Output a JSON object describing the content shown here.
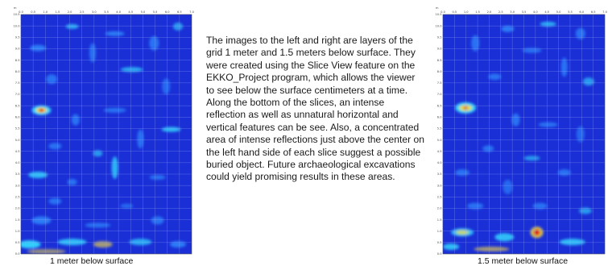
{
  "description_text": "The images to the left and right are layers of the grid 1 meter and 1.5 meters below surface. They were created using the Slice View feature on the EKKO_Project program, which allows the viewer to see below the surface centimeters at a time. Along the bottom of the slices, an intense reflection as well as unnatural horizontal and vertical features can be see. Also, a concentrated area of intense reflections just above the center on the left hand side of each slice suggest a possible buried object. Future archaeological excavations could yield promising results in these areas.",
  "left_slice": {
    "caption": "1 meter below surface",
    "x_unit": "m",
    "x_ticks": [
      "0.0",
      "0.5",
      "1.0",
      "1.5",
      "2.0",
      "2.5",
      "3.0",
      "3.5",
      "4.0",
      "4.5",
      "5.0",
      "5.5",
      "6.0",
      "6.5",
      "7.0"
    ],
    "y_ticks": [
      "10.5",
      "10.0",
      "9.5",
      "9.0",
      "8.5",
      "8.0",
      "7.5",
      "7.0",
      "6.5",
      "6.0",
      "5.5",
      "5.0",
      "4.5",
      "4.0",
      "3.5",
      "3.0",
      "2.5",
      "2.0",
      "1.5",
      "1.0",
      "0.5",
      "0.0"
    ]
  },
  "right_slice": {
    "caption": "1.5 meter below surface",
    "x_unit": "m",
    "x_ticks": [
      "0.0",
      "0.5",
      "1.0",
      "1.5",
      "2.0",
      "2.5",
      "3.0",
      "3.5",
      "4.0",
      "4.5",
      "5.0",
      "5.5",
      "6.0",
      "6.5",
      "7.0"
    ],
    "y_ticks": [
      "10.5",
      "10.0",
      "9.5",
      "9.0",
      "8.5",
      "8.0",
      "7.5",
      "7.0",
      "6.5",
      "6.0",
      "5.5",
      "5.0",
      "4.5",
      "4.0",
      "3.5",
      "3.0",
      "2.5",
      "2.0",
      "1.5",
      "1.0",
      "0.5",
      "0.0"
    ]
  },
  "colors": {
    "background_field": "#1a2fd6",
    "deep_field": "#0a1580",
    "reflection_low": "#2f8fff",
    "reflection_mid": "#33e0ff",
    "reflection_high": "#ffe23a",
    "reflection_peak": "#e01818",
    "grid": "#9fb0ff"
  }
}
